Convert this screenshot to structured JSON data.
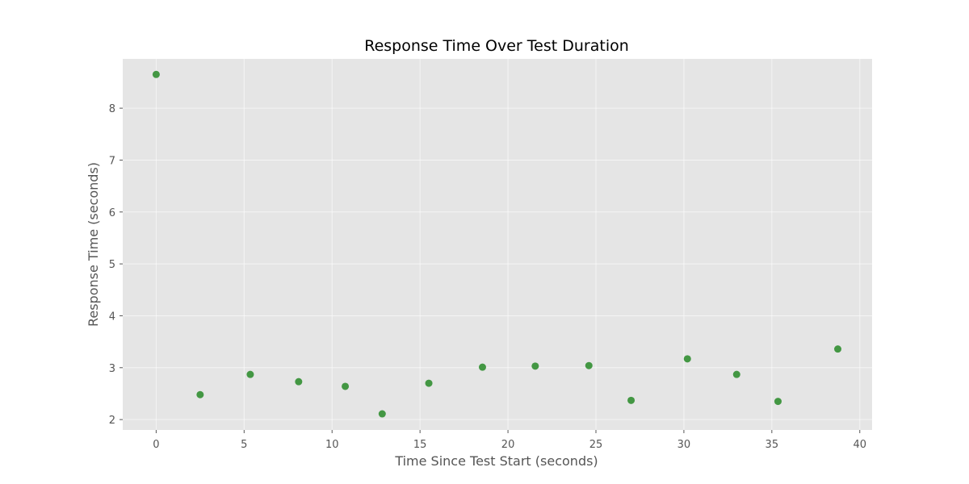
{
  "chart_data": {
    "type": "scatter",
    "title": "Response Time Over Test Duration",
    "xlabel": "Time Since Test Start (seconds)",
    "ylabel": "Response Time (seconds)",
    "xlim": [
      -1.9,
      40.7
    ],
    "ylim": [
      1.8,
      8.95
    ],
    "xticks": [
      0,
      5,
      10,
      15,
      20,
      25,
      30,
      35,
      40
    ],
    "yticks": [
      2,
      3,
      4,
      5,
      6,
      7,
      8
    ],
    "grid": true,
    "series": [
      {
        "color": "#3a923a",
        "x": [
          0,
          2.5,
          5.35,
          8.1,
          10.75,
          12.85,
          15.5,
          18.55,
          21.55,
          24.6,
          27.0,
          30.2,
          33.0,
          35.35,
          38.75
        ],
        "y": [
          8.65,
          2.48,
          2.87,
          2.73,
          2.64,
          2.11,
          2.7,
          3.01,
          3.03,
          3.04,
          2.37,
          3.17,
          2.87,
          2.35,
          3.36
        ]
      }
    ],
    "style": {
      "plot_background": "#e5e5e5",
      "grid_color": "#ffffff",
      "text_color": "#555555"
    }
  }
}
